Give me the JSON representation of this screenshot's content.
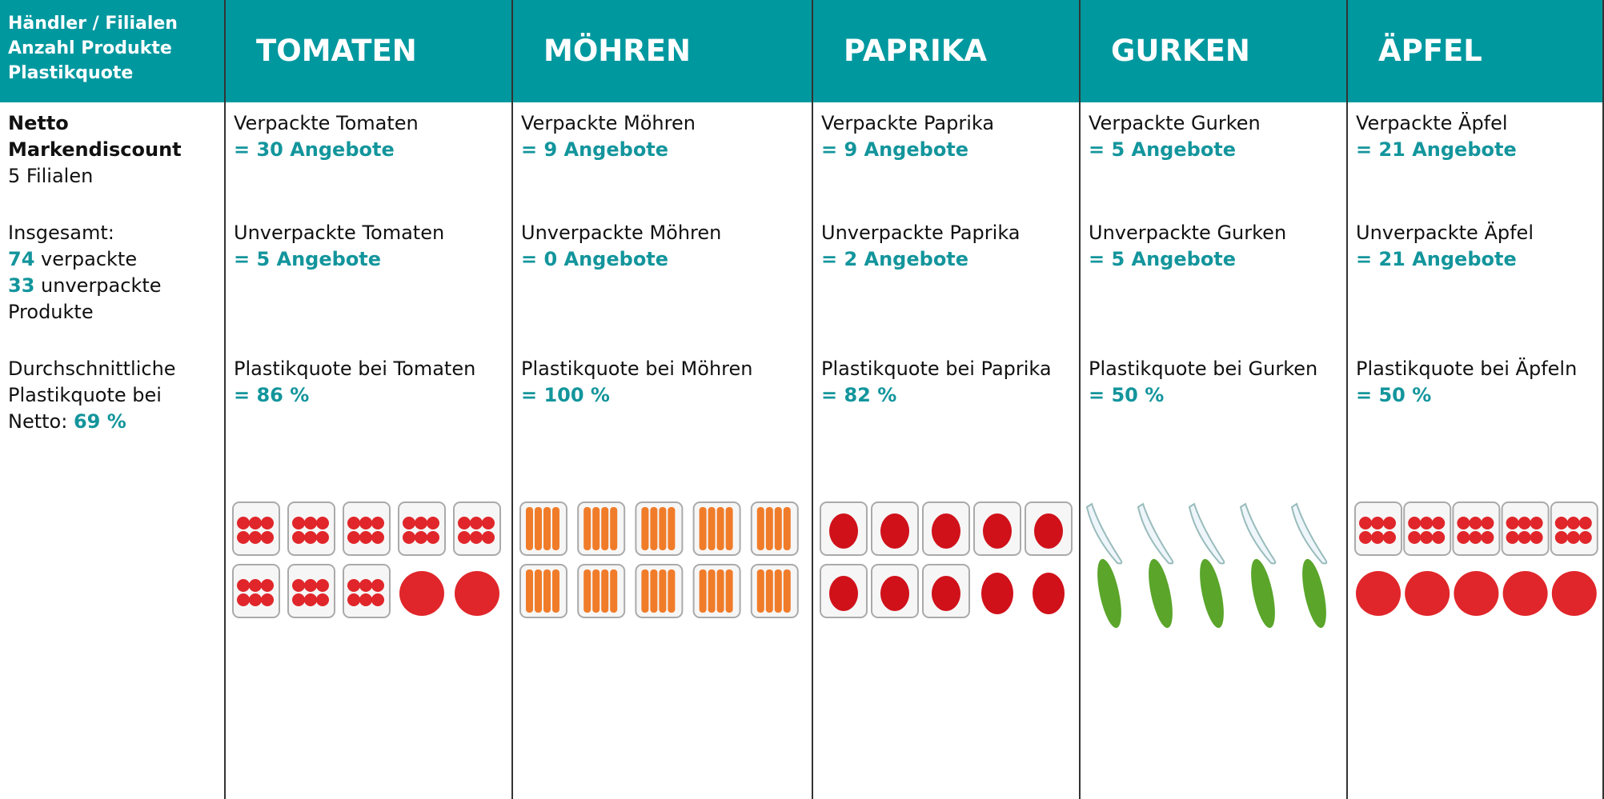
{
  "header": {
    "first_cell": [
      "Händler / Filialen",
      "Anzahl Produkte",
      "Plastikquote"
    ],
    "columns": [
      "TOMATEN",
      "MÖHREN",
      "PAPRIKA",
      "GURKEN",
      "ÄPFEL"
    ]
  },
  "retailer": {
    "name": "Netto Markendiscount",
    "stores": "5 Filialen",
    "total_label": "Insgesamt:",
    "packed_count": "74",
    "packed_label": "verpackte",
    "unpacked_count": "33",
    "unpacked_label": "unverpackte Produkte",
    "avg_label": "Durchschnittliche Plastikquote bei Netto:",
    "avg_value": "69 %"
  },
  "products": [
    {
      "packed_label": "Verpackte Tomaten",
      "packed_value": "= 30 Angebote",
      "unpacked_label": "Unverpackte Tomaten",
      "unpacked_value": "= 5 Angebote",
      "quota_label": "Plastikquote bei Tomaten",
      "quota_value": "= 86 %"
    },
    {
      "packed_label": "Verpackte Möhren",
      "packed_value": "= 9 Angebote",
      "unpacked_label": "Unverpackte Möhren",
      "unpacked_value": "= 0 Angebote",
      "quota_label": "Plastikquote bei Möhren",
      "quota_value": "= 100 %"
    },
    {
      "packed_label": "Verpackte Paprika",
      "packed_value": "= 9 Angebote",
      "unpacked_label": "Unverpackte Paprika",
      "unpacked_value": "= 2 Angebote",
      "quota_label": "Plastikquote bei Paprika",
      "quota_value": "= 82 %"
    },
    {
      "packed_label": "Verpackte Gurken",
      "packed_value": "= 5 Angebote",
      "unpacked_label": "Unverpackte Gurken",
      "unpacked_value": "= 5 Angebote",
      "quota_label": "Plastikquote bei Gurken",
      "quota_value": "= 50 %"
    },
    {
      "packed_label": "Verpackte Äpfel",
      "packed_value": "= 21 Angebote",
      "unpacked_label": "Unverpackte Äpfel",
      "unpacked_value": "= 21 Angebote",
      "quota_label": "Plastikquote bei Äpfeln",
      "quota_value": "= 50 %"
    }
  ]
}
